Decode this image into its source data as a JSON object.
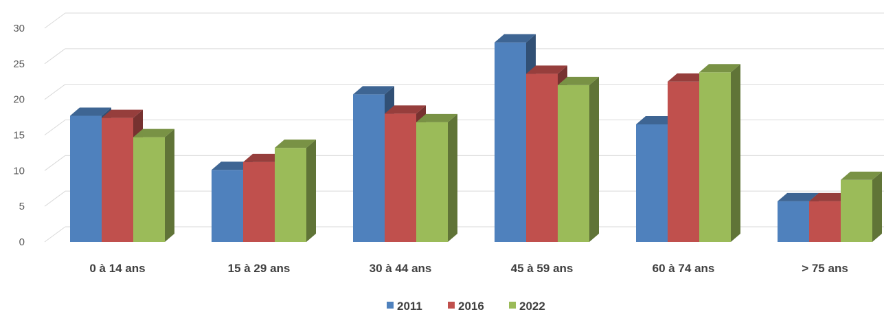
{
  "chart_data": {
    "type": "bar",
    "title": "",
    "xlabel": "",
    "ylabel": "",
    "categories": [
      "0 à 14 ans",
      "15 à 29 ans",
      "30 à 44 ans",
      "45 à 59 ans",
      "60 à 74 ans",
      "> 75 ans"
    ],
    "series": [
      {
        "name": "2011",
        "color": "#4F81BD",
        "values": [
          17.7,
          10.1,
          20.7,
          28.0,
          16.5,
          5.7
        ]
      },
      {
        "name": "2016",
        "color": "#C0504D",
        "values": [
          17.4,
          11.2,
          18.0,
          23.6,
          22.5,
          5.7
        ]
      },
      {
        "name": "2022",
        "color": "#9BBB59",
        "values": [
          14.7,
          13.2,
          16.8,
          22.0,
          23.8,
          8.7
        ]
      }
    ],
    "ylim": [
      0,
      30
    ],
    "yticks": [
      0,
      5,
      10,
      15,
      20,
      25,
      30
    ],
    "grid": true,
    "legend_position": "bottom",
    "style": "3d-clustered-column"
  }
}
